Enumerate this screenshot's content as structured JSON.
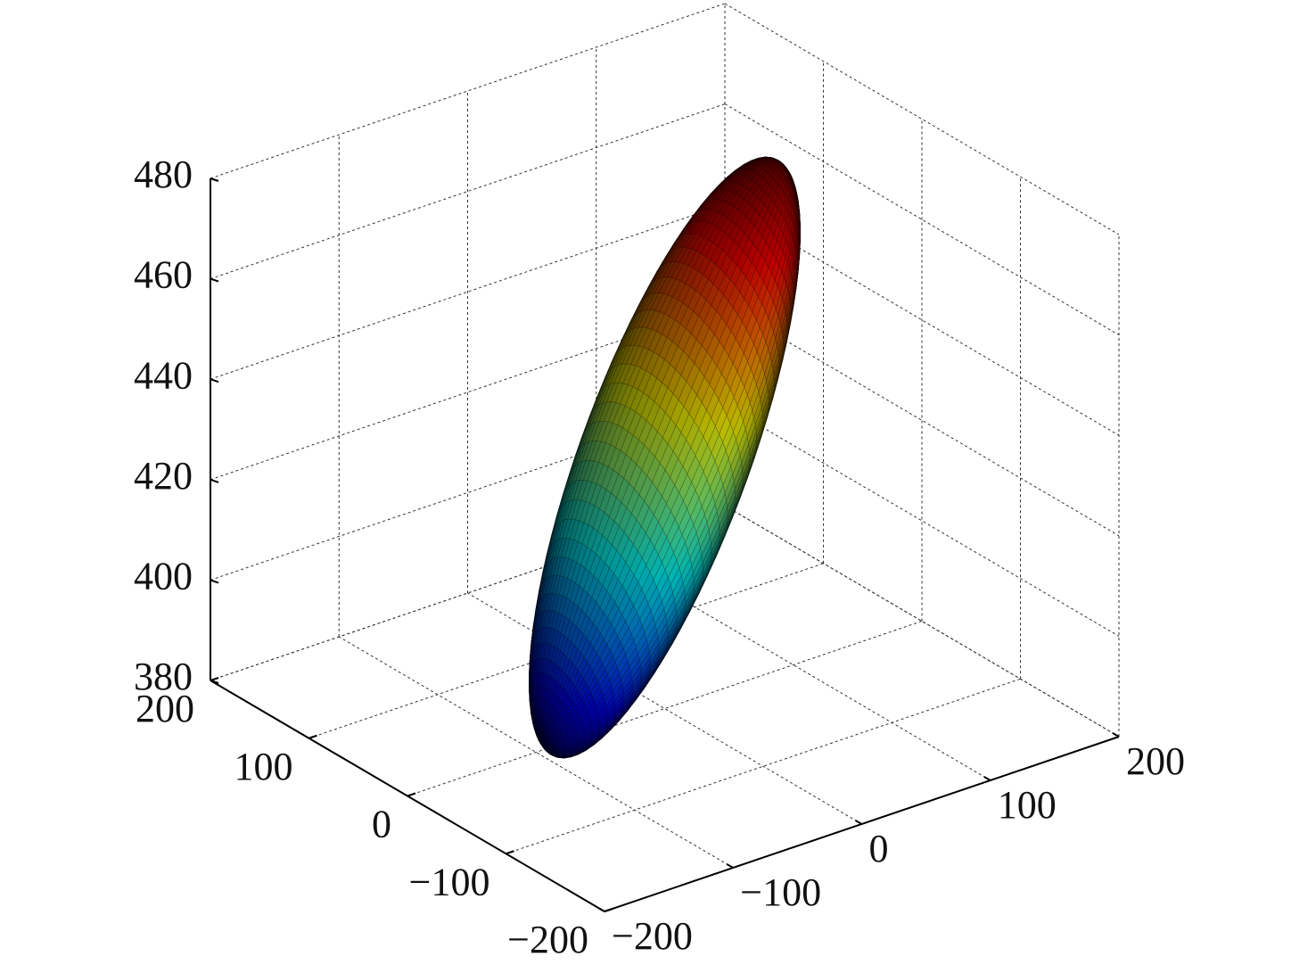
{
  "chart_data": {
    "type": "surface3d",
    "xlim": [
      -200,
      200
    ],
    "xticks": [
      {
        "value": -200,
        "label": "−200"
      },
      {
        "value": -100,
        "label": "−100"
      },
      0,
      100,
      200
    ],
    "ylim": [
      -200,
      200
    ],
    "yticks": [
      {
        "value": -200,
        "label": "−200"
      },
      {
        "value": -100,
        "label": "−100"
      },
      0,
      100,
      200
    ],
    "zlim": [
      380,
      480
    ],
    "zticks": [
      380,
      400,
      420,
      440,
      460,
      480
    ],
    "grid": true,
    "surface": {
      "shape": "ellipsoid",
      "center": [
        0,
        0,
        430
      ],
      "semi_axes": [
        [
          88,
          -7,
          50
        ],
        [
          5.5,
          69.8,
          0
        ],
        [
          -9.8,
          0.8,
          17.4
        ]
      ],
      "colormap": "jet"
    }
  }
}
